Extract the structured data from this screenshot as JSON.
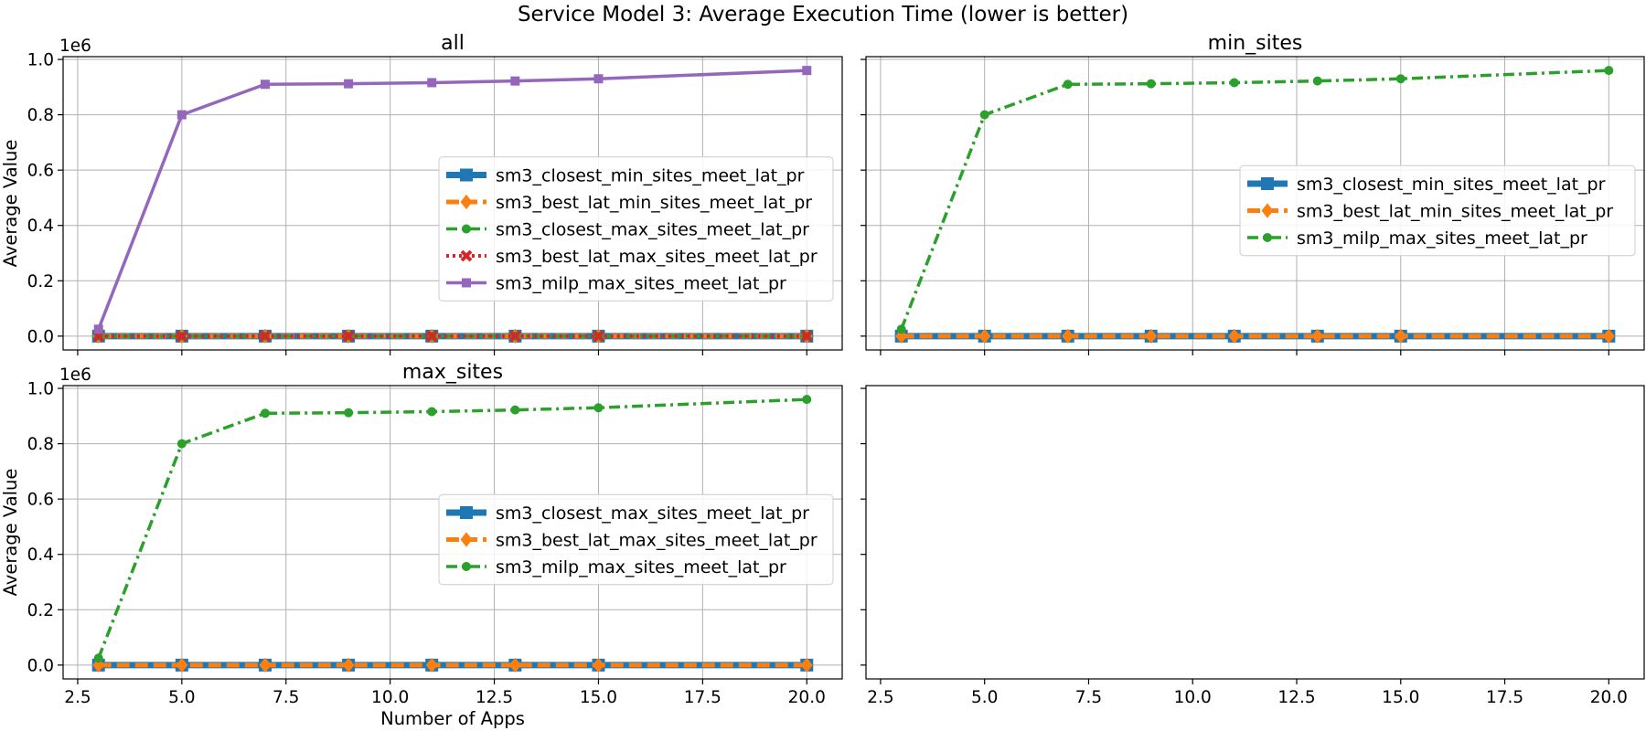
{
  "figure": {
    "title": "Service Model 3: Average Execution Time (lower is better)"
  },
  "colors": {
    "blue": "#1f77b4",
    "orange": "#ff7f0e",
    "green": "#2ca02c",
    "red": "#d62728",
    "purple": "#9467bd"
  },
  "chart_data": [
    {
      "type": "line",
      "title": "all",
      "xlabel": "",
      "ylabel": "Average Value",
      "y_multiplier": "1e6",
      "xlim": [
        2.15,
        20.85
      ],
      "ylim": [
        -50000,
        1010000
      ],
      "x_ticks": [
        2.5,
        5.0,
        7.5,
        10.0,
        12.5,
        15.0,
        17.5,
        20.0
      ],
      "x_tick_labels": [
        "",
        "",
        "",
        "",
        "",
        "",
        "",
        ""
      ],
      "y_ticks": [
        0,
        200000,
        400000,
        600000,
        800000,
        1000000
      ],
      "y_tick_labels": [
        "0.0",
        "0.2",
        "0.4",
        "0.6",
        "0.8",
        "1.0"
      ],
      "grid": true,
      "legend_position": "center-right",
      "x": [
        3,
        5,
        7,
        9,
        11,
        13,
        15,
        20
      ],
      "series": [
        {
          "name": "sm3_closest_min_sites_meet_lat_pr",
          "color": "#1f77b4",
          "line_style": "solid",
          "marker": "square",
          "values": [
            0,
            0,
            0,
            0,
            0,
            0,
            0,
            0
          ]
        },
        {
          "name": "sm3_best_lat_min_sites_meet_lat_pr",
          "color": "#ff7f0e",
          "line_style": "dashed",
          "marker": "diamond",
          "values": [
            0,
            0,
            0,
            0,
            0,
            0,
            0,
            0
          ]
        },
        {
          "name": "sm3_closest_max_sites_meet_lat_pr",
          "color": "#2ca02c",
          "line_style": "dashdot",
          "marker": "circle",
          "values": [
            0,
            0,
            0,
            0,
            0,
            0,
            0,
            0
          ]
        },
        {
          "name": "sm3_best_lat_max_sites_meet_lat_pr",
          "color": "#d62728",
          "line_style": "dotted",
          "marker": "x",
          "values": [
            0,
            0,
            0,
            0,
            0,
            0,
            0,
            0
          ]
        },
        {
          "name": "sm3_milp_max_sites_meet_lat_pr",
          "color": "#9467bd",
          "line_style": "solid",
          "marker": "square",
          "values": [
            25000,
            800000,
            910000,
            912000,
            916000,
            922000,
            930000,
            960000
          ]
        }
      ]
    },
    {
      "type": "line",
      "title": "min_sites",
      "xlabel": "",
      "ylabel": "",
      "xlim": [
        2.15,
        20.85
      ],
      "ylim": [
        -50000,
        1010000
      ],
      "x_ticks": [
        2.5,
        5.0,
        7.5,
        10.0,
        12.5,
        15.0,
        17.5,
        20.0
      ],
      "x_tick_labels": [
        "",
        "",
        "",
        "",
        "",
        "",
        "",
        ""
      ],
      "y_ticks": [
        0,
        200000,
        400000,
        600000,
        800000,
        1000000
      ],
      "y_tick_labels": [
        "",
        "",
        "",
        "",
        "",
        ""
      ],
      "grid": true,
      "legend_position": "center-right",
      "x": [
        3,
        5,
        7,
        9,
        11,
        13,
        15,
        20
      ],
      "series": [
        {
          "name": "sm3_closest_min_sites_meet_lat_pr",
          "color": "#1f77b4",
          "line_style": "solid",
          "marker": "square",
          "values": [
            0,
            0,
            0,
            0,
            0,
            0,
            0,
            0
          ]
        },
        {
          "name": "sm3_best_lat_min_sites_meet_lat_pr",
          "color": "#ff7f0e",
          "line_style": "dashed",
          "marker": "diamond",
          "values": [
            0,
            0,
            0,
            0,
            0,
            0,
            0,
            0
          ]
        },
        {
          "name": "sm3_milp_max_sites_meet_lat_pr",
          "color": "#2ca02c",
          "line_style": "dashdot",
          "marker": "circle",
          "values": [
            25000,
            800000,
            910000,
            912000,
            916000,
            922000,
            930000,
            960000
          ]
        }
      ]
    },
    {
      "type": "line",
      "title": "max_sites",
      "xlabel": "Number of Apps",
      "ylabel": "Average Value",
      "y_multiplier": "1e6",
      "xlim": [
        2.15,
        20.85
      ],
      "ylim": [
        -50000,
        1010000
      ],
      "x_ticks": [
        2.5,
        5.0,
        7.5,
        10.0,
        12.5,
        15.0,
        17.5,
        20.0
      ],
      "x_tick_labels": [
        "2.5",
        "5.0",
        "7.5",
        "10.0",
        "12.5",
        "15.0",
        "17.5",
        "20.0"
      ],
      "y_ticks": [
        0,
        200000,
        400000,
        600000,
        800000,
        1000000
      ],
      "y_tick_labels": [
        "0.0",
        "0.2",
        "0.4",
        "0.6",
        "0.8",
        "1.0"
      ],
      "grid": true,
      "legend_position": "center-right",
      "x": [
        3,
        5,
        7,
        9,
        11,
        13,
        15,
        20
      ],
      "series": [
        {
          "name": "sm3_closest_max_sites_meet_lat_pr",
          "color": "#1f77b4",
          "line_style": "solid",
          "marker": "square",
          "values": [
            0,
            0,
            0,
            0,
            0,
            0,
            0,
            0
          ]
        },
        {
          "name": "sm3_best_lat_max_sites_meet_lat_pr",
          "color": "#ff7f0e",
          "line_style": "dashed",
          "marker": "diamond",
          "values": [
            0,
            0,
            0,
            0,
            0,
            0,
            0,
            0
          ]
        },
        {
          "name": "sm3_milp_max_sites_meet_lat_pr",
          "color": "#2ca02c",
          "line_style": "dashdot",
          "marker": "circle",
          "values": [
            25000,
            800000,
            910000,
            912000,
            916000,
            922000,
            930000,
            960000
          ]
        }
      ]
    },
    {
      "type": "line",
      "title": "",
      "xlabel": "",
      "ylabel": "",
      "xlim": [
        2.15,
        20.85
      ],
      "ylim": [
        -50000,
        1010000
      ],
      "x_ticks": [
        2.5,
        5.0,
        7.5,
        10.0,
        12.5,
        15.0,
        17.5,
        20.0
      ],
      "x_tick_labels": [
        "2.5",
        "5.0",
        "7.5",
        "10.0",
        "12.5",
        "15.0",
        "17.5",
        "20.0"
      ],
      "y_ticks": [
        0,
        200000,
        400000,
        600000,
        800000,
        1000000
      ],
      "y_tick_labels": [
        "",
        "",
        "",
        "",
        "",
        ""
      ],
      "grid": false,
      "legend_position": "",
      "x": [],
      "series": []
    }
  ]
}
